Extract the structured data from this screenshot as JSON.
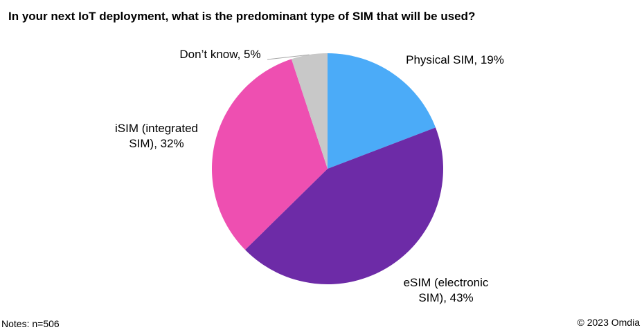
{
  "chart_data": {
    "type": "pie",
    "title": "In your next IoT deployment, what is the predominant type of SIM that will be used?",
    "slices": [
      {
        "name": "Physical SIM",
        "value": 19,
        "color": "#4BABF8",
        "label_lines": [
          "Physical SIM, 19%"
        ]
      },
      {
        "name": "eSIM (electronic SIM)",
        "value": 43,
        "color": "#6D2BA7",
        "label_lines": [
          "eSIM (electronic",
          "SIM), 43%"
        ]
      },
      {
        "name": "iSIM (integrated SIM)",
        "value": 32,
        "color": "#EE4FB1",
        "label_lines": [
          "iSIM (integrated",
          "SIM), 32%"
        ]
      },
      {
        "name": "Don’t know",
        "value": 5,
        "color": "#C8C8C8",
        "label_lines": [
          "Don’t know, 5%"
        ]
      }
    ],
    "start_angle": "12 o'clock",
    "direction": "clockwise",
    "legend": "none"
  },
  "footer": {
    "notes": "Notes: n=506",
    "copyright": "© 2023 Omdia"
  }
}
